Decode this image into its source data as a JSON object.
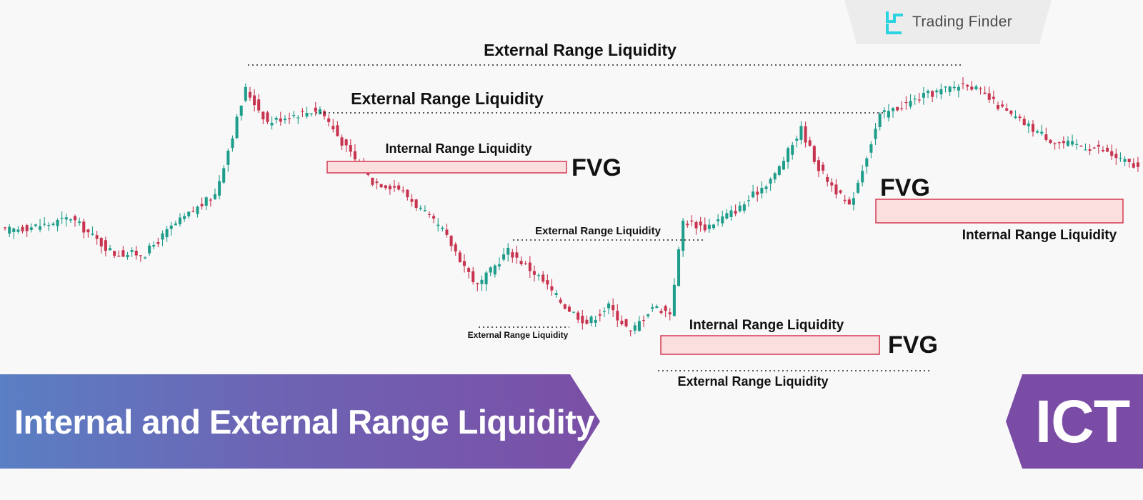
{
  "brand": {
    "name": "Trading Finder"
  },
  "banner": {
    "title": "Internal and External Range Liquidity"
  },
  "badge": {
    "text": "ICT"
  },
  "colors": {
    "bull": "#1e9d8b",
    "bear": "#c8334f",
    "fvg_fill": "#fbdede",
    "fvg_stroke": "#d23a52",
    "banner_start": "#5a7fc4",
    "banner_end": "#7b4fa6",
    "logo_accent": "#2bd4e0"
  },
  "chart_data": {
    "type": "candlestick",
    "title": "",
    "xlabel": "",
    "ylabel": "",
    "ylim": [
      0,
      100
    ],
    "x_count": 260,
    "anchors": [
      [
        0,
        45
      ],
      [
        10,
        47
      ],
      [
        15,
        49
      ],
      [
        22,
        41
      ],
      [
        25,
        38
      ],
      [
        32,
        38
      ],
      [
        38,
        46
      ],
      [
        48,
        56
      ],
      [
        55,
        88
      ],
      [
        60,
        78
      ],
      [
        65,
        80
      ],
      [
        72,
        82
      ],
      [
        78,
        70
      ],
      [
        84,
        60
      ],
      [
        90,
        58
      ],
      [
        100,
        45
      ],
      [
        108,
        28
      ],
      [
        115,
        39
      ],
      [
        122,
        31
      ],
      [
        128,
        22
      ],
      [
        133,
        17
      ],
      [
        138,
        22
      ],
      [
        143,
        14
      ],
      [
        148,
        22
      ],
      [
        152,
        20
      ],
      [
        155,
        48
      ],
      [
        160,
        46
      ],
      [
        168,
        52
      ],
      [
        176,
        62
      ],
      [
        182,
        76
      ],
      [
        186,
        64
      ],
      [
        193,
        52
      ],
      [
        200,
        80
      ],
      [
        210,
        86
      ],
      [
        215,
        88
      ],
      [
        220,
        90
      ],
      [
        230,
        80
      ],
      [
        240,
        72
      ],
      [
        250,
        70
      ],
      [
        259,
        64
      ]
    ],
    "annotations": [
      {
        "text": "External Range Liquidity",
        "kind": "level",
        "y": 92
      },
      {
        "text": "External Range Liquidity",
        "kind": "level",
        "y": 85
      },
      {
        "text": "Internal Range Liquidity",
        "kind": "fvg-label"
      },
      {
        "text": "FVG",
        "kind": "fvg"
      },
      {
        "text": "External Range Liquidity",
        "kind": "level",
        "y": 53
      },
      {
        "text": "External Range Liquidity",
        "kind": "level",
        "y": 28
      },
      {
        "text": "FVG",
        "kind": "fvg"
      },
      {
        "text": "Internal Range Liquidity",
        "kind": "fvg-label"
      },
      {
        "text": "Internal Range Liquidity",
        "kind": "fvg-label"
      },
      {
        "text": "FVG",
        "kind": "fvg"
      },
      {
        "text": "External Range Liquidity",
        "kind": "level",
        "y": 18
      }
    ]
  }
}
